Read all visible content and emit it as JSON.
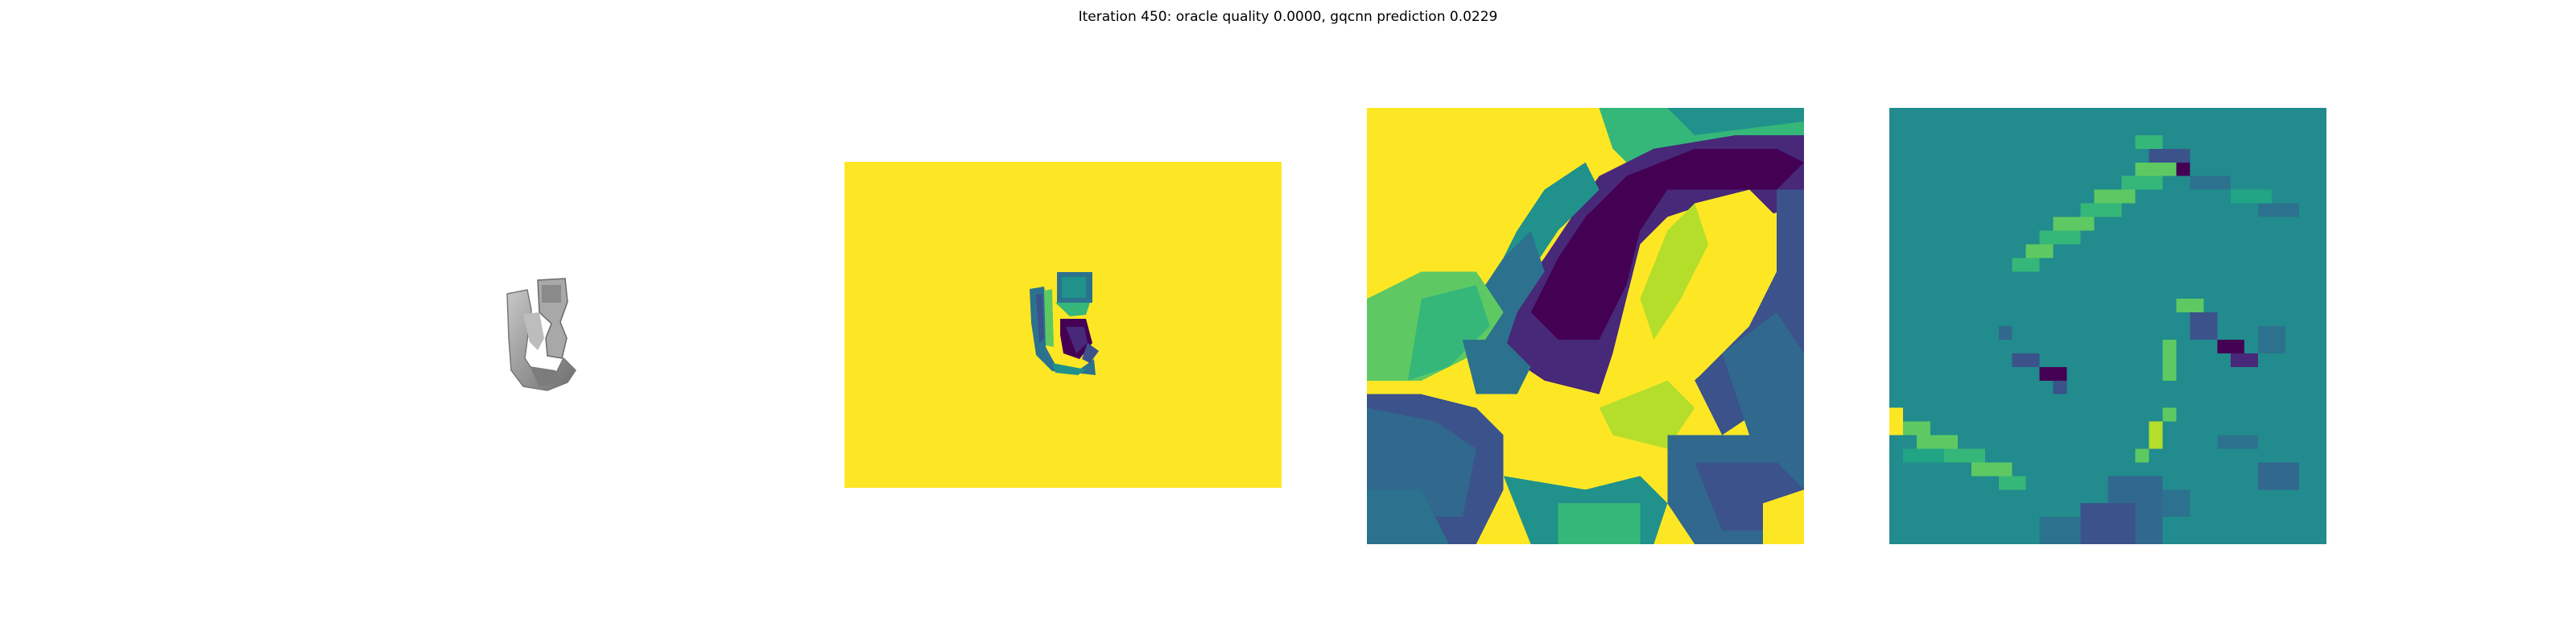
{
  "figure": {
    "title": "Iteration 450: oracle quality 0.0000, gqcnn prediction 0.0229"
  },
  "panels": [
    {
      "id": "color-render",
      "kind": "rendered-object"
    },
    {
      "id": "depth-image",
      "kind": "colormap-image",
      "colormap": "viridis"
    },
    {
      "id": "depth-crop",
      "kind": "colormap-image",
      "colormap": "viridis"
    },
    {
      "id": "gradient-crop",
      "kind": "colormap-image",
      "colormap": "viridis"
    }
  ],
  "colors": {
    "viridis_dark": "#440154",
    "viridis_blue": "#3b528b",
    "viridis_teal": "#21918c",
    "viridis_green": "#5ec962",
    "viridis_yellow": "#fde725",
    "object_gray": "#9a9a9a"
  }
}
